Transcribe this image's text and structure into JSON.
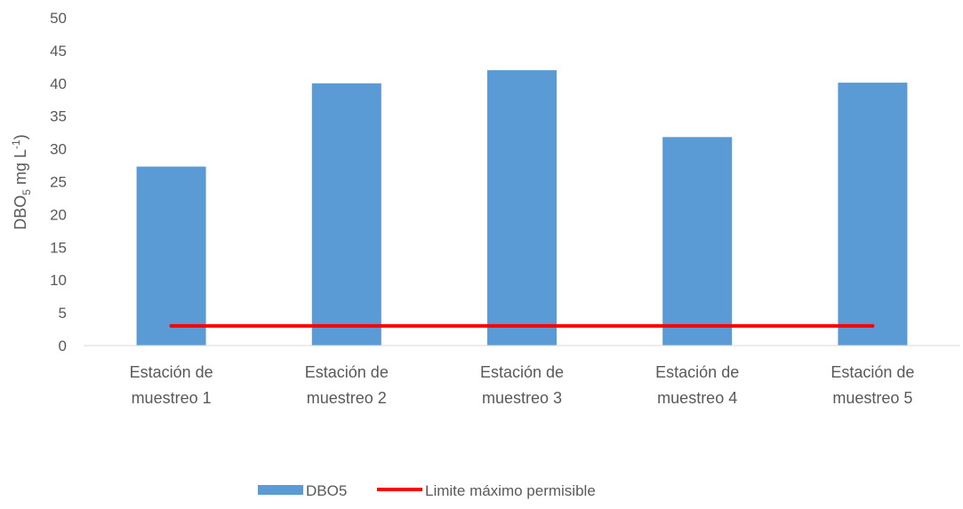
{
  "chart_data": {
    "type": "bar",
    "title": "",
    "xlabel": "",
    "ylabel": {
      "parts": [
        "DBO",
        "5",
        " mg L",
        "-1",
        ")"
      ],
      "display": "DBO5 mg L-1)"
    },
    "ylim": [
      0,
      50
    ],
    "yticks": [
      0,
      5,
      10,
      15,
      20,
      25,
      30,
      35,
      40,
      45,
      50
    ],
    "categories": [
      [
        "Estación de",
        "muestreo 1"
      ],
      [
        "Estación de",
        "muestreo 2"
      ],
      [
        "Estación de",
        "muestreo 3"
      ],
      [
        "Estación de",
        "muestreo 4"
      ],
      [
        "Estación de",
        "muestreo 5"
      ]
    ],
    "series": [
      {
        "name": "DBO5",
        "type": "bar",
        "color": "#5b9bd5",
        "values": [
          27.3,
          40.0,
          42.0,
          31.8,
          40.1
        ]
      },
      {
        "name": "Limite máximo permisible",
        "type": "line",
        "color": "#ff0000",
        "values": [
          3,
          3,
          3,
          3,
          3
        ]
      }
    ],
    "grid": false,
    "legend_position": "bottom"
  },
  "colors": {
    "axis_line": "#d9d9d9",
    "text": "#595959"
  }
}
